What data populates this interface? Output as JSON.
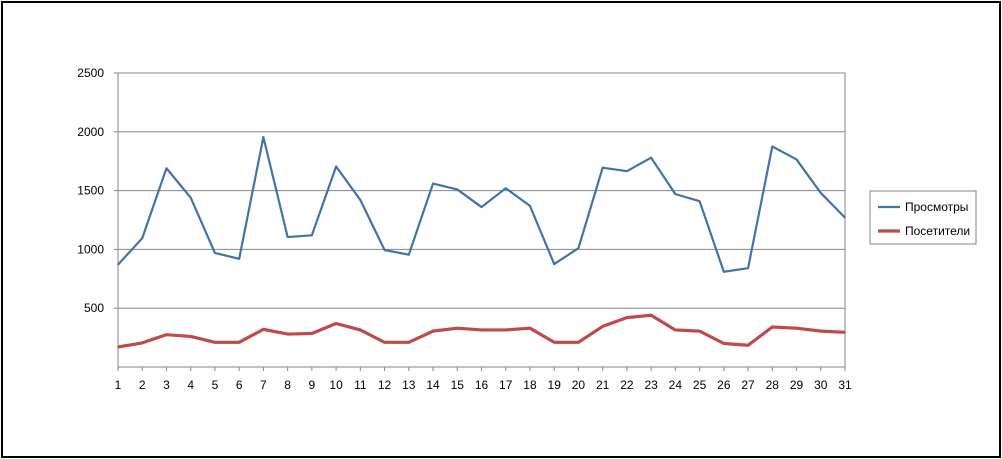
{
  "chart_data": {
    "type": "line",
    "title": "",
    "xlabel": "",
    "ylabel": "",
    "x": [
      1,
      2,
      3,
      4,
      5,
      6,
      7,
      8,
      9,
      10,
      11,
      12,
      13,
      14,
      15,
      16,
      17,
      18,
      19,
      20,
      21,
      22,
      23,
      24,
      25,
      26,
      27,
      28,
      29,
      30,
      31
    ],
    "ylim": [
      0,
      2500
    ],
    "yticks": [
      500,
      1000,
      1500,
      2000,
      2500
    ],
    "grid": true,
    "legend_position": "right",
    "series": [
      {
        "name": "Просмотры",
        "color": "#4372aa",
        "values": [
          870,
          1095,
          1690,
          1440,
          970,
          920,
          1955,
          1105,
          1120,
          1705,
          1420,
          995,
          955,
          1560,
          1510,
          1360,
          1520,
          1370,
          875,
          1010,
          1695,
          1665,
          1780,
          1470,
          1410,
          810,
          840,
          1875,
          1765,
          1480,
          1270
        ]
      },
      {
        "name": "Посетители",
        "color": "#be4b48",
        "values": [
          170,
          205,
          275,
          260,
          210,
          210,
          320,
          280,
          285,
          370,
          315,
          210,
          210,
          305,
          330,
          315,
          315,
          330,
          210,
          210,
          345,
          420,
          440,
          315,
          305,
          200,
          185,
          340,
          330,
          305,
          295
        ]
      }
    ]
  }
}
